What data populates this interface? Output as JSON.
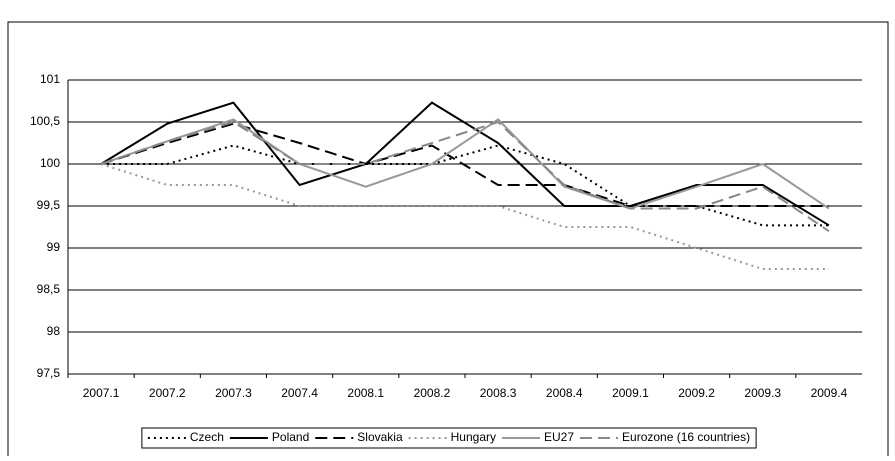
{
  "chart_data": {
    "type": "line",
    "categories": [
      "2007.1",
      "2007.2",
      "2007.3",
      "2007.4",
      "2008.1",
      "2008.2",
      "2008.3",
      "2008.4",
      "2009.1",
      "2009.2",
      "2009.3",
      "2009.4"
    ],
    "series": [
      {
        "name": "Czech",
        "color": "#000000",
        "dash": "dotted",
        "values": [
          100,
          100,
          100.22,
          100,
          100,
          100,
          100.22,
          100,
          99.5,
          99.5,
          99.27,
          99.27
        ]
      },
      {
        "name": "Poland",
        "color": "#000000",
        "dash": "solid",
        "values": [
          100,
          100.48,
          100.73,
          99.75,
          100,
          100.73,
          100.25,
          99.5,
          99.5,
          99.75,
          99.75,
          99.27
        ]
      },
      {
        "name": "Slovakia",
        "color": "#000000",
        "dash": "dashed",
        "values": [
          100,
          100.25,
          100.48,
          100.25,
          100,
          100.22,
          99.75,
          99.75,
          99.5,
          99.5,
          99.5,
          99.5
        ]
      },
      {
        "name": "Hungary",
        "color": "#999999",
        "dash": "dotted",
        "values": [
          100,
          99.75,
          99.75,
          99.5,
          99.5,
          99.5,
          99.5,
          99.25,
          99.25,
          99,
          98.75,
          98.75
        ]
      },
      {
        "name": "EU27",
        "color": "#999999",
        "dash": "solid",
        "values": [
          100,
          100.27,
          100.53,
          100,
          99.73,
          100,
          100.53,
          99.73,
          99.47,
          99.73,
          100,
          99.47
        ]
      },
      {
        "name": "Eurozone (16 countries)",
        "color": "#888888",
        "dash": "dashed",
        "values": [
          100,
          100.27,
          100.5,
          100,
          100,
          100.25,
          100.5,
          99.75,
          99.47,
          99.47,
          99.73,
          99.2
        ]
      }
    ],
    "ylim": [
      97.5,
      101
    ],
    "yticks": [
      {
        "value": 97.5,
        "label": "97,5"
      },
      98,
      {
        "value": 98.5,
        "label": "98,5"
      },
      99,
      {
        "value": 99.5,
        "label": "99,5"
      },
      100,
      {
        "value": 100.5,
        "label": "100,5"
      },
      101
    ],
    "grid": true,
    "legend": "bottom"
  }
}
